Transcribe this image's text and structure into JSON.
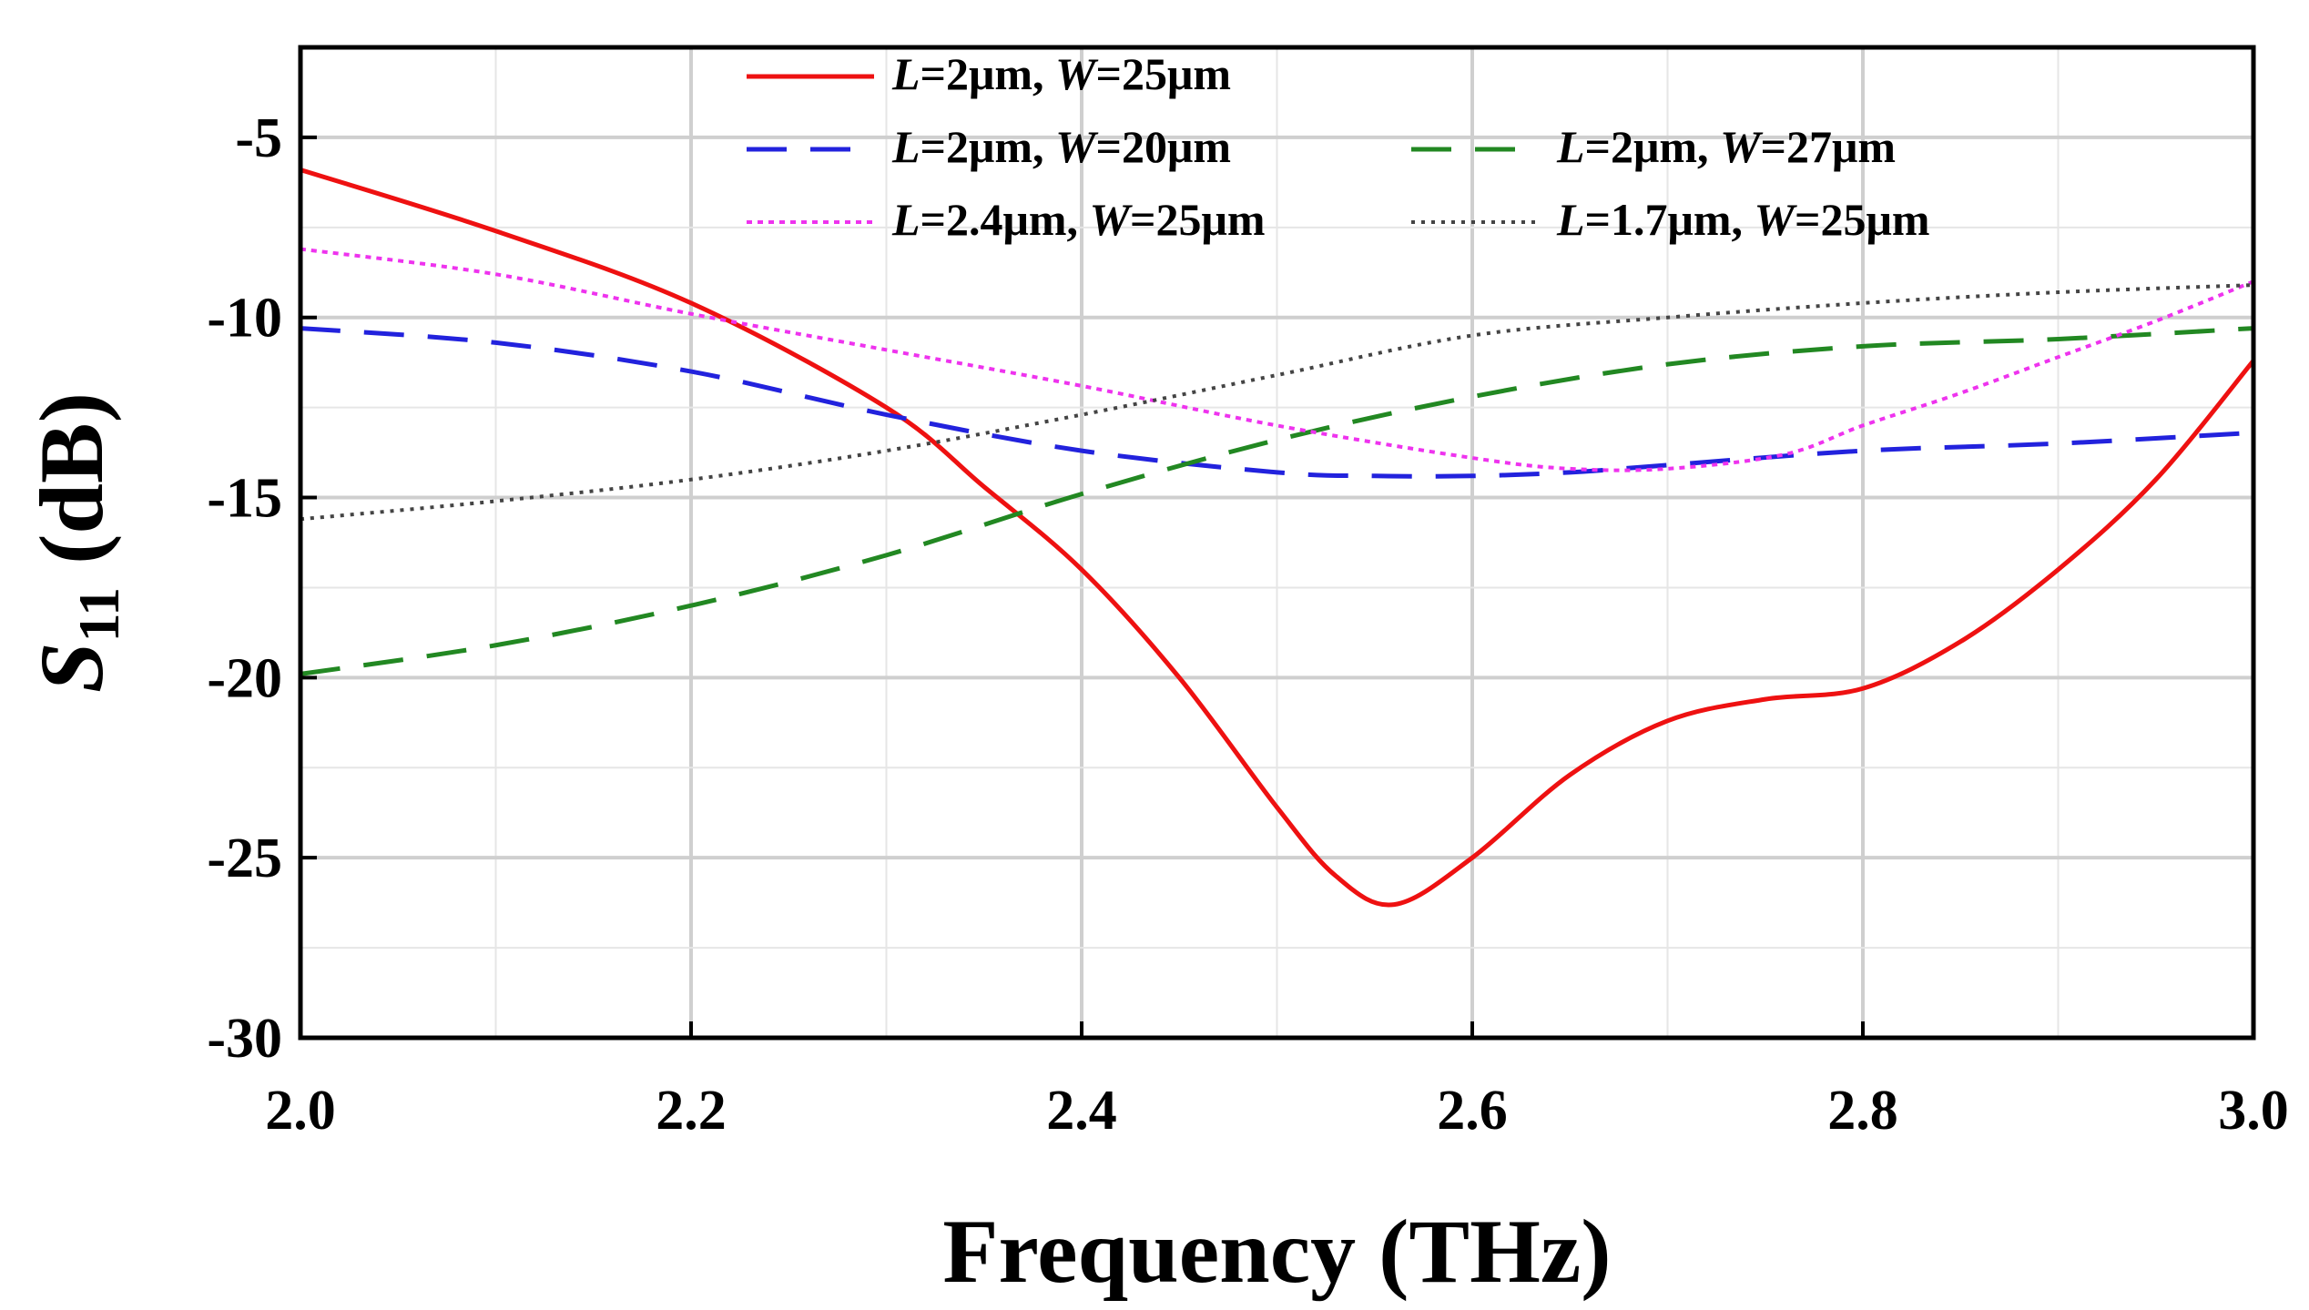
{
  "chart_data": {
    "type": "line",
    "xlabel": "Frequency (THz)",
    "ylabel": {
      "main": "S",
      "sub": "11",
      "unit": " (dB)"
    },
    "xlim": [
      2.0,
      3.0
    ],
    "ylim": [
      -30,
      -2.5
    ],
    "xticks": [
      2.0,
      2.2,
      2.4,
      2.6,
      2.8,
      3.0
    ],
    "xtick_labels": [
      "2.0",
      "2.2",
      "2.4",
      "2.6",
      "2.8",
      "3.0"
    ],
    "yticks": [
      -5,
      -10,
      -15,
      -20,
      -25,
      -30
    ],
    "ytick_labels": [
      "-5",
      "-10",
      "-15",
      "-20",
      "-25",
      "-30"
    ],
    "grid": true,
    "legend_position": "top",
    "series": [
      {
        "name": "L=2μm, W=25μm",
        "label_parts": [
          "L",
          "=2μm, ",
          "W",
          "=25μm"
        ],
        "color": "#ee1111",
        "style": "solid",
        "x": [
          2.0,
          2.1,
          2.2,
          2.3,
          2.35,
          2.4,
          2.45,
          2.5,
          2.53,
          2.56,
          2.6,
          2.65,
          2.7,
          2.75,
          2.8,
          2.85,
          2.9,
          2.95,
          3.0
        ],
        "y": [
          -5.9,
          -7.6,
          -9.6,
          -12.5,
          -14.7,
          -17.0,
          -20.0,
          -23.6,
          -25.5,
          -26.3,
          -25.0,
          -22.7,
          -21.2,
          -20.6,
          -20.3,
          -19.0,
          -17.0,
          -14.5,
          -11.2
        ]
      },
      {
        "name": "L=2μm, W=20μm",
        "label_parts": [
          "L",
          "=2μm, ",
          "W",
          "=20μm"
        ],
        "color": "#2222dd",
        "style": "dashed",
        "x": [
          2.0,
          2.1,
          2.2,
          2.3,
          2.4,
          2.5,
          2.55,
          2.6,
          2.65,
          2.7,
          2.8,
          2.9,
          3.0
        ],
        "y": [
          -10.3,
          -10.7,
          -11.5,
          -12.7,
          -13.7,
          -14.3,
          -14.4,
          -14.4,
          -14.3,
          -14.1,
          -13.7,
          -13.5,
          -13.2
        ]
      },
      {
        "name": "L=2μm, W=27μm",
        "label_parts": [
          "L",
          "=2μm, ",
          "W",
          "=27μm"
        ],
        "color": "#228822",
        "style": "dashed",
        "x": [
          2.0,
          2.1,
          2.2,
          2.3,
          2.4,
          2.5,
          2.6,
          2.7,
          2.8,
          2.9,
          3.0
        ],
        "y": [
          -19.9,
          -19.1,
          -18.0,
          -16.6,
          -14.9,
          -13.4,
          -12.2,
          -11.3,
          -10.8,
          -10.6,
          -10.3
        ]
      },
      {
        "name": "L=2.4μm, W=25μm",
        "label_parts": [
          "L",
          "=2.4μm, ",
          "W",
          "=25μm"
        ],
        "color": "#ee33ee",
        "style": "dotted",
        "x": [
          2.0,
          2.1,
          2.2,
          2.3,
          2.4,
          2.5,
          2.6,
          2.65,
          2.7,
          2.76,
          2.8,
          2.85,
          2.9,
          2.95,
          3.0
        ],
        "y": [
          -8.1,
          -8.8,
          -9.9,
          -10.9,
          -11.9,
          -13.0,
          -13.9,
          -14.2,
          -14.2,
          -13.8,
          -13.0,
          -12.1,
          -11.1,
          -10.1,
          -9.0
        ]
      },
      {
        "name": "L=1.7μm, W=25μm",
        "label_parts": [
          "L",
          "=1.7μm, ",
          "W",
          "=25μm"
        ],
        "color": "#444444",
        "style": "dotted-fine",
        "x": [
          2.0,
          2.1,
          2.2,
          2.3,
          2.4,
          2.5,
          2.6,
          2.7,
          2.8,
          2.9,
          3.0
        ],
        "y": [
          -15.6,
          -15.1,
          -14.5,
          -13.7,
          -12.7,
          -11.6,
          -10.5,
          -10.0,
          -9.6,
          -9.3,
          -9.1
        ]
      }
    ]
  }
}
